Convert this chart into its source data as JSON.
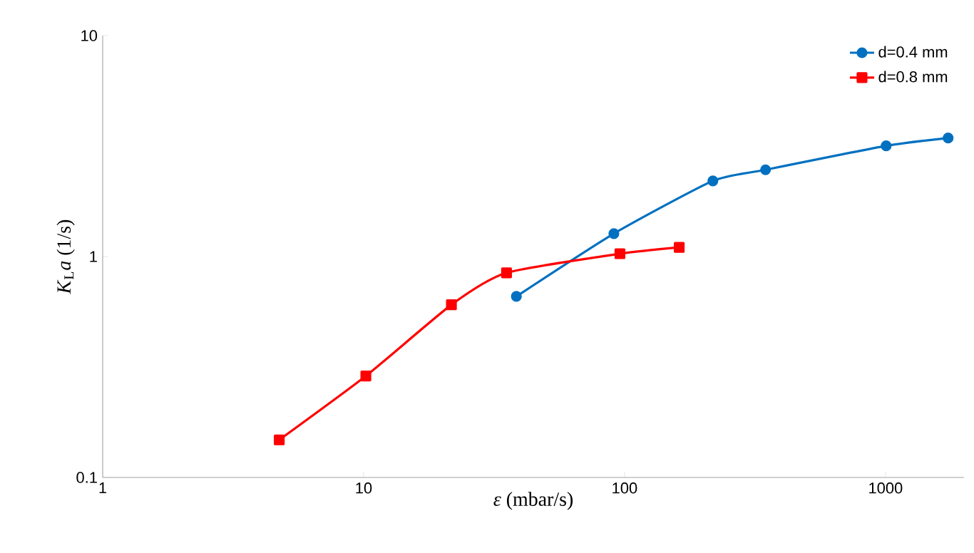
{
  "chart_data": {
    "type": "line",
    "xlabel": "*ε* (mbar/s)",
    "ylabel": "*K*$_{L}$*a* (1/s)",
    "log": "xy",
    "xlim": [
      1,
      2000
    ],
    "xticks": [
      1,
      10,
      100,
      1000
    ],
    "ylim": [
      0.1,
      10
    ],
    "yticks": [
      0.1,
      1,
      10
    ],
    "grid": false,
    "legend": "top right",
    "series": [
      {
        "name": "d=0.4 mm",
        "color": "#0070c0",
        "marker": "circle",
        "x": [
          38.5,
          91,
          218,
          347,
          1006,
          1738
        ],
        "values": [
          0.66,
          1.27,
          2.2,
          2.47,
          3.17,
          3.44
        ]
      },
      {
        "name": "d=0.8 mm",
        "color": "#ff0000",
        "marker": "square",
        "x": [
          4.75,
          10.2,
          21.7,
          35.3,
          96,
          162
        ],
        "values": [
          0.148,
          0.288,
          0.605,
          0.844,
          1.03,
          1.1
        ]
      }
    ]
  }
}
